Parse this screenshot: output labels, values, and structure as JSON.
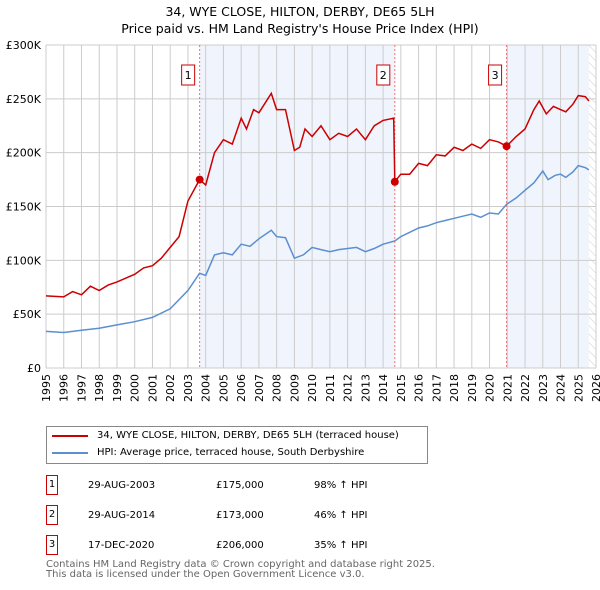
{
  "chart_data": {
    "type": "line",
    "title": "34, WYE CLOSE, HILTON, DERBY, DE65 5LH",
    "subtitle": "Price paid vs. HM Land Registry's House Price Index (HPI)",
    "xlim": [
      1995,
      2026
    ],
    "ylim": [
      0,
      300000
    ],
    "x_ticks": [
      "1995",
      "1996",
      "1997",
      "1998",
      "1999",
      "2000",
      "2001",
      "2002",
      "2003",
      "2004",
      "2005",
      "2006",
      "2007",
      "2008",
      "2009",
      "2010",
      "2011",
      "2012",
      "2013",
      "2014",
      "2015",
      "2016",
      "2017",
      "2018",
      "2019",
      "2020",
      "2021",
      "2022",
      "2023",
      "2024",
      "2025",
      "2026"
    ],
    "y_ticks": [
      {
        "v": 0,
        "label": "£0"
      },
      {
        "v": 50000,
        "label": "£50K"
      },
      {
        "v": 100000,
        "label": "£100K"
      },
      {
        "v": 150000,
        "label": "£150K"
      },
      {
        "v": 200000,
        "label": "£200K"
      },
      {
        "v": 250000,
        "label": "£250K"
      },
      {
        "v": 300000,
        "label": "£300K"
      }
    ],
    "grid": true,
    "series": [
      {
        "name": "34, WYE CLOSE, HILTON, DERBY, DE65 5LH (terraced house)",
        "color": "#cc0000",
        "x": [
          1995,
          1996,
          1996.5,
          1997,
          1997.5,
          1998,
          1998.5,
          1999,
          2000,
          2000.5,
          2001,
          2001.5,
          2002,
          2002.5,
          2003,
          2003.66,
          2004,
          2004.5,
          2005,
          2005.5,
          2006,
          2006.3,
          2006.7,
          2007,
          2007.5,
          2007.7,
          2008,
          2008.5,
          2009,
          2009.3,
          2009.6,
          2010,
          2010.5,
          2011,
          2011.5,
          2012,
          2012.5,
          2013,
          2013.5,
          2014,
          2014.6,
          2014.66,
          2015,
          2015.5,
          2016,
          2016.5,
          2017,
          2017.5,
          2018,
          2018.5,
          2019,
          2019.5,
          2020,
          2020.5,
          2020.96,
          2021.5,
          2022,
          2022.5,
          2022.8,
          2023.2,
          2023.6,
          2024,
          2024.3,
          2024.7,
          2025,
          2025.4,
          2025.6
        ],
        "y": [
          67,
          66,
          71,
          68,
          76,
          72,
          77,
          80,
          87,
          93,
          95,
          102,
          112,
          122,
          155,
          175,
          170,
          200,
          212,
          208,
          232,
          222,
          240,
          237,
          250,
          255,
          240,
          240,
          202,
          205,
          222,
          215,
          225,
          212,
          218,
          215,
          222,
          212,
          225,
          230,
          232,
          173,
          180,
          180,
          190,
          188,
          198,
          197,
          205,
          202,
          208,
          204,
          212,
          210,
          206,
          215,
          222,
          240,
          248,
          236,
          243,
          240,
          238,
          245,
          253,
          252,
          248
        ]
      },
      {
        "name": "HPI: Average price, terraced house, South Derbyshire",
        "color": "#5b8fd0",
        "x": [
          1995,
          1996,
          1997,
          1998,
          1999,
          2000,
          2001,
          2002,
          2003,
          2003.66,
          2004,
          2004.5,
          2005,
          2005.5,
          2006,
          2006.5,
          2007,
          2007.7,
          2008,
          2008.5,
          2009,
          2009.5,
          2010,
          2010.5,
          2011,
          2011.5,
          2012,
          2012.5,
          2013,
          2013.5,
          2014,
          2014.66,
          2015,
          2015.5,
          2016,
          2016.5,
          2017,
          2017.5,
          2018,
          2018.5,
          2019,
          2019.5,
          2020,
          2020.5,
          2020.96,
          2021.5,
          2022,
          2022.5,
          2023,
          2023.3,
          2023.7,
          2024,
          2024.3,
          2024.7,
          2025,
          2025.4,
          2025.6
        ],
        "y": [
          34,
          33,
          35,
          37,
          40,
          43,
          47,
          55,
          72,
          88,
          86,
          105,
          107,
          105,
          115,
          113,
          120,
          128,
          122,
          121,
          102,
          105,
          112,
          110,
          108,
          110,
          111,
          112,
          108,
          111,
          115,
          118,
          122,
          126,
          130,
          132,
          135,
          137,
          139,
          141,
          143,
          140,
          144,
          143,
          152,
          158,
          165,
          172,
          183,
          175,
          179,
          180,
          177,
          182,
          188,
          186,
          184
        ]
      }
    ],
    "y_unit_multiplier": 1000,
    "sales": [
      {
        "n": "1",
        "x": 2003.66,
        "y": 175000,
        "date": "29-AUG-2003",
        "price": "£175,000",
        "hpi": "98% ↑ HPI"
      },
      {
        "n": "2",
        "x": 2014.66,
        "y": 173000,
        "date": "29-AUG-2014",
        "price": "£173,000",
        "hpi": "46% ↑ HPI"
      },
      {
        "n": "3",
        "x": 2020.96,
        "y": 206000,
        "date": "17-DEC-2020",
        "price": "£206,000",
        "hpi": "35% ↑ HPI"
      }
    ],
    "hatch_from": 2025.6
  },
  "footer": {
    "line1": "Contains HM Land Registry data © Crown copyright and database right 2025.",
    "line2": "This data is licensed under the Open Government Licence v3.0."
  }
}
